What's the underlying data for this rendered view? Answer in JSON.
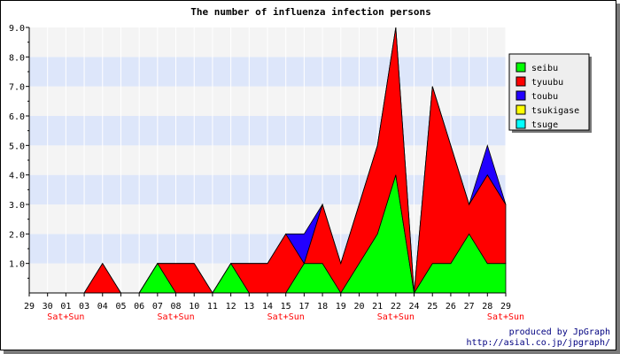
{
  "chart_data": {
    "type": "area",
    "stacked": true,
    "title": "The number of influenza infection persons",
    "xlabel": "",
    "ylabel": "",
    "categories": [
      "29",
      "30",
      "01",
      "03",
      "04",
      "05",
      "06",
      "07",
      "08",
      "10",
      "11",
      "12",
      "13",
      "14",
      "15",
      "17",
      "18",
      "19",
      "20",
      "21",
      "22",
      "24",
      "25",
      "26",
      "27",
      "28",
      "29"
    ],
    "weekend_labels": [
      {
        "category_index": 2,
        "text": "Sat+Sun"
      },
      {
        "category_index": 8,
        "text": "Sat+Sun"
      },
      {
        "category_index": 14,
        "text": "Sat+Sun"
      },
      {
        "category_index": 20,
        "text": "Sat+Sun"
      },
      {
        "category_index": 26,
        "text": "Sat+Sun"
      }
    ],
    "ylim": [
      0,
      9
    ],
    "yticks": [
      "1.0",
      "2.0",
      "3.0",
      "4.0",
      "5.0",
      "6.0",
      "7.0",
      "8.0",
      "9.0"
    ],
    "grid": true,
    "series": [
      {
        "name": "seibu",
        "color": "#00ff00",
        "values": [
          0,
          0,
          0,
          0,
          0,
          0,
          0,
          1,
          0,
          0,
          0,
          1,
          0,
          0,
          0,
          1,
          1,
          0,
          1,
          2,
          4,
          0,
          1,
          1,
          2,
          1,
          1
        ]
      },
      {
        "name": "tyuubu",
        "color": "#ff0000",
        "values": [
          0,
          0,
          0,
          0,
          1,
          0,
          0,
          0,
          1,
          1,
          0,
          0,
          1,
          1,
          2,
          0,
          2,
          1,
          2,
          3,
          5,
          0,
          6,
          4,
          1,
          3,
          2
        ]
      },
      {
        "name": "toubu",
        "color": "#2200ff",
        "values": [
          0,
          0,
          0,
          0,
          0,
          0,
          0,
          0,
          0,
          0,
          0,
          0,
          0,
          0,
          0,
          1,
          0,
          0,
          0,
          0,
          0,
          0,
          0,
          0,
          0,
          1,
          0
        ]
      },
      {
        "name": "tsukigase",
        "color": "#ffff00",
        "values": [
          0,
          0,
          0,
          0,
          0,
          0,
          0,
          0,
          0,
          0,
          0,
          0,
          0,
          0,
          0,
          0,
          0,
          0,
          0,
          0,
          0,
          0,
          0,
          0,
          0,
          0,
          0
        ]
      },
      {
        "name": "tsuge",
        "color": "#00ffff",
        "values": [
          0,
          0,
          0,
          0,
          0,
          0,
          0,
          0,
          0,
          0,
          0,
          0,
          0,
          0,
          0,
          0,
          0,
          0,
          0,
          0,
          0,
          0,
          0,
          0,
          0,
          0,
          0
        ]
      }
    ],
    "legend_position": "right"
  },
  "credits": {
    "line1": "produced by JpGraph",
    "line2": "http://asial.co.jp/jpgraph/"
  }
}
